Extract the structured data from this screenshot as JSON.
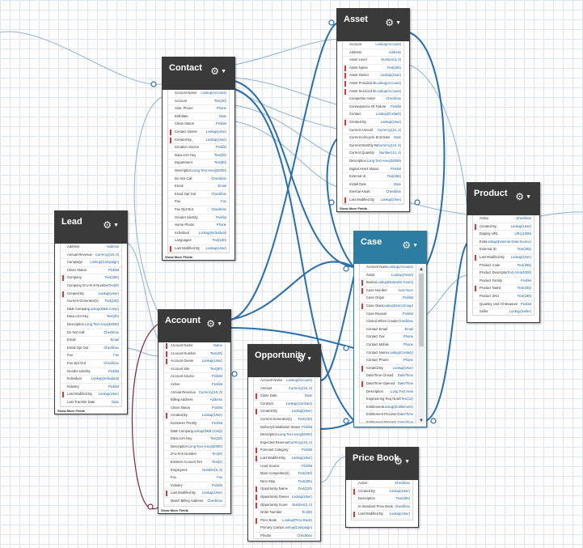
{
  "colors": {
    "header": "#3a3a3a",
    "case_header": "#2d7ca2",
    "link_blue": "#2b6ea8",
    "link_light": "#8fb4cf",
    "link_maroon": "#7a2a40",
    "required": "#d9363e"
  },
  "show_more": "Show More Fields",
  "objects": {
    "contact": {
      "title": "Contact",
      "fields": [
        [
          "Account Name",
          "Lookup(Account)",
          0
        ],
        [
          "Account",
          "Text(40)",
          0
        ],
        [
          "Asst. Phone",
          "Phone",
          0
        ],
        [
          "Birthdate",
          "Date",
          0
        ],
        [
          "Clean Status",
          "Picklist",
          0
        ],
        [
          "Contact Owner",
          "Lookup(User)",
          1
        ],
        [
          "Created By",
          "Lookup(User)",
          1
        ],
        [
          "Creation Source",
          "Picklist",
          0
        ],
        [
          "Data.com Key",
          "Text(20)",
          0
        ],
        [
          "Department",
          "Text(80)",
          0
        ],
        [
          "Description",
          "Long Text Area(32000)",
          0
        ],
        [
          "Do Not Call",
          "Checkbox",
          0
        ],
        [
          "Email",
          "Email",
          0
        ],
        [
          "Email Opt Out",
          "Checkbox",
          0
        ],
        [
          "Fax",
          "Fax",
          0
        ],
        [
          "Fax Opt Out",
          "Checkbox",
          0
        ],
        [
          "Gender Identity",
          "Picklist",
          0
        ],
        [
          "Home Phone",
          "Phone",
          0
        ],
        [
          "Individual",
          "Lookup(Individual)",
          0
        ],
        [
          "Languages",
          "Text(100)",
          0
        ],
        [
          "Last Modified By",
          "Lookup(User)",
          1
        ],
        [
          "Last Stay-in-Touch Request Date",
          "Date/Time",
          0
        ],
        [
          "Last Stay-in-Touch Save Date",
          "Date/Time",
          0
        ]
      ]
    },
    "asset": {
      "title": "Asset",
      "fields": [
        [
          "Account",
          "Lookup(Account)",
          0
        ],
        [
          "Address",
          "Address",
          0
        ],
        [
          "Asset Level",
          "Number(3, 0)",
          0
        ],
        [
          "Asset Name",
          "Text(255)",
          1
        ],
        [
          "Asset Owner",
          "Lookup(User)",
          1
        ],
        [
          "Asset Provided By",
          "Lookup(Account)",
          1
        ],
        [
          "Asset Serviced By",
          "Lookup(Account)",
          1
        ],
        [
          "Competitor Asset",
          "Checkbox",
          0
        ],
        [
          "Consequence Of Failure",
          "Picklist",
          0
        ],
        [
          "Contact",
          "Lookup(Contact)",
          0
        ],
        [
          "Created By",
          "Lookup(User)",
          1
        ],
        [
          "Current Amount",
          "Currency(16, 2)",
          0
        ],
        [
          "Current Lifecycle End Date",
          "Date",
          0
        ],
        [
          "Current Monthly Recurring Revenue",
          "Currency(16, 2)",
          0
        ],
        [
          "Current Quantity",
          "Number(12, 2)",
          0
        ],
        [
          "Description",
          "Long Text Area(32000)",
          0
        ],
        [
          "Digital Asset Status",
          "Picklist",
          0
        ],
        [
          "External Id",
          "Text(255)",
          0
        ],
        [
          "Install Date",
          "Date",
          0
        ],
        [
          "Internal Asset",
          "Checkbox",
          0
        ],
        [
          "Last Modified By",
          "Lookup(User)",
          1
        ],
        [
          "Lifecycle End Date",
          "Date/Time",
          0
        ],
        [
          "Lifecycle-managed asset",
          "Checkbox",
          0
        ]
      ]
    },
    "lead": {
      "title": "Lead",
      "fields": [
        [
          "Address",
          "Address",
          0
        ],
        [
          "Annual Revenue",
          "Currency(18, 0)",
          0
        ],
        [
          "Campaign",
          "Lookup(Campaign)",
          0
        ],
        [
          "Clean Status",
          "Picklist",
          0
        ],
        [
          "Company",
          "Text(255)",
          1
        ],
        [
          "Company D-U-N-S Number",
          "Text(9)",
          0
        ],
        [
          "Created By",
          "Lookup(User)",
          1
        ],
        [
          "Current Generator(s)",
          "Text(100)",
          0
        ],
        [
          "D&B Company",
          "Lookup(D&B Comp)",
          0
        ],
        [
          "Data.com Key",
          "Text(20)",
          0
        ],
        [
          "Description",
          "Long Text Area(32000)",
          0
        ],
        [
          "Do Not Call",
          "Checkbox",
          0
        ],
        [
          "Email",
          "Email",
          0
        ],
        [
          "Email Opt Out",
          "Checkbox",
          0
        ],
        [
          "Fax",
          "Fax",
          0
        ],
        [
          "Fax Opt Out",
          "Checkbox",
          0
        ],
        [
          "Gender Identity",
          "Picklist",
          0
        ],
        [
          "Individual",
          "Lookup(Individual)",
          0
        ],
        [
          "Industry",
          "Picklist",
          0
        ],
        [
          "Last Modified By",
          "Lookup(User)",
          1
        ],
        [
          "Last Transfer Date",
          "Date",
          0
        ],
        [
          "Lead Owner",
          "Lookup(User)",
          1
        ],
        [
          "Lead Source",
          "Picklist",
          0
        ],
        [
          "Lead Status",
          "Picklist",
          0
        ]
      ]
    },
    "case": {
      "title": "Case",
      "fields": [
        [
          "Account Name",
          "Lookup(Account)",
          0
        ],
        [
          "Asset",
          "Lookup(Asset)",
          0
        ],
        [
          "Business Hours",
          "Lookup(Business Hours)",
          1
        ],
        [
          "Case Number",
          "Auto Num",
          1
        ],
        [
          "Case Origin",
          "Picklist",
          0
        ],
        [
          "Case Owner",
          "Lookup(User,Group)",
          1
        ],
        [
          "Case Reason",
          "Picklist",
          0
        ],
        [
          "Closed When Created",
          "Checkbox",
          0
        ],
        [
          "Contact Email",
          "Email",
          0
        ],
        [
          "Contact Fax",
          "Phone",
          0
        ],
        [
          "Contact Mobile",
          "Phone",
          0
        ],
        [
          "Contact Name",
          "Lookup(Contact)",
          0
        ],
        [
          "Contact Phone",
          "Phone",
          0
        ],
        [
          "Created By",
          "Lookup(User)",
          1
        ],
        [
          "Date/Time Closed",
          "Date/Time",
          0
        ],
        [
          "Date/Time Opened",
          "Date/Time",
          1
        ],
        [
          "Description",
          "Long Text Area",
          0
        ],
        [
          "Engineering Req Number",
          "Text(12)",
          0
        ],
        [
          "Entitlement Name",
          "Lookup(Entitlement)",
          0
        ],
        [
          "Entitlement Process End Time",
          "Date/Time",
          0
        ],
        [
          "Entitlement Process Start Time",
          "Date/Time",
          0
        ],
        [
          "Escalated",
          "Checkbox",
          0
        ]
      ]
    },
    "product": {
      "title": "Product",
      "fields": [
        [
          "Active",
          "Checkbox",
          0
        ],
        [
          "Created By",
          "Lookup(User)",
          1
        ],
        [
          "Display URL",
          "URL(1000)",
          0
        ],
        [
          "External Data Source",
          "Lookup(External Data Source)",
          0
        ],
        [
          "External ID",
          "Text(255)",
          0
        ],
        [
          "Last Modified By",
          "Lookup(User)",
          1
        ],
        [
          "Product Code",
          "Text(255)",
          0
        ],
        [
          "Product Description",
          "Text Area(4000)",
          0
        ],
        [
          "Product Family",
          "Picklist",
          0
        ],
        [
          "Product Name",
          "Text(255)",
          1
        ],
        [
          "Product SKU",
          "Text(180)",
          0
        ],
        [
          "Quantity Unit Of Measure",
          "Picklist",
          0
        ],
        [
          "Seller",
          "Lookup(Seller)",
          0
        ],
        [
          "Source Product",
          "Lookup(Product)",
          0
        ]
      ]
    },
    "account": {
      "title": "Account",
      "fields": [
        [
          "Account Name",
          "Name",
          1
        ],
        [
          "Account Number",
          "Text(40)",
          1
        ],
        [
          "Account Owner",
          "Lookup(User)",
          1
        ],
        [
          "Account Site",
          "Text(80)",
          0
        ],
        [
          "Account Source",
          "Picklist",
          0
        ],
        [
          "Active",
          "Picklist",
          0
        ],
        [
          "Annual Revenue",
          "Currency(18, 0)",
          0
        ],
        [
          "Billing Address",
          "Address",
          0
        ],
        [
          "Clean Status",
          "Picklist",
          0
        ],
        [
          "Created By",
          "Lookup(User)",
          1
        ],
        [
          "Customer Priority",
          "Picklist",
          0
        ],
        [
          "D&B Company",
          "Lookup(D&B Comp)",
          0
        ],
        [
          "Data.com Key",
          "Text(20)",
          0
        ],
        [
          "Description",
          "Long Text Area(32000)",
          0
        ],
        [
          "D-U-N-S Number",
          "Text(9)",
          0
        ],
        [
          "Einstein Account Tier",
          "Text(2)",
          0
        ],
        [
          "Employees",
          "Number(8, 0)",
          0
        ],
        [
          "Fax",
          "Fax",
          0
        ],
        [
          "Industry",
          "Picklist",
          0
        ],
        [
          "Last Modified By",
          "Lookup(User)",
          1
        ],
        [
          "Match Billing Address",
          "Checkbox",
          0
        ],
        [
          "NAICS Code",
          "Text(8)",
          0
        ],
        [
          "NAICS Description",
          "Text(120)",
          0
        ],
        [
          "Number of Locations",
          "Number(3, 0)",
          0
        ]
      ]
    },
    "opportunity": {
      "title": "Opportunity",
      "fields": [
        [
          "Account Name",
          "Lookup(Account)",
          0
        ],
        [
          "Amount",
          "Currency(16, 2)",
          0
        ],
        [
          "Close Date",
          "Date",
          1
        ],
        [
          "Contract",
          "Lookup(Contract)",
          0
        ],
        [
          "Created By",
          "Lookup(User)",
          1
        ],
        [
          "Current Generator(s)",
          "Text(100)",
          0
        ],
        [
          "Delivery/Installation Status",
          "Picklist",
          0
        ],
        [
          "Description",
          "Long Text Area(32000)",
          0
        ],
        [
          "Expected Revenue",
          "Currency(16, 2)",
          0
        ],
        [
          "Forecast Category",
          "Picklist",
          1
        ],
        [
          "Last Modified By",
          "Lookup(User)",
          1
        ],
        [
          "Lead Source",
          "Picklist",
          0
        ],
        [
          "Main Competitor(s)",
          "Text(100)",
          0
        ],
        [
          "Next Step",
          "Text(255)",
          0
        ],
        [
          "Opportunity Name",
          "Text(120)",
          1
        ],
        [
          "Opportunity Owner",
          "Lookup(User)",
          1
        ],
        [
          "Opportunity Score",
          "Number(3, 0)",
          1
        ],
        [
          "Order Number",
          "Text(8)",
          0
        ],
        [
          "Price Book",
          "Lookup(Price Book)",
          1
        ],
        [
          "Primary Campaign Source",
          "Lookup(Campaign)",
          0
        ],
        [
          "Private",
          "Checkbox",
          0
        ],
        [
          "Probability (%)",
          "Percent(3, 0)",
          1
        ],
        [
          "Quantity",
          "Number(16, 2)",
          0
        ]
      ]
    },
    "pricebook": {
      "title": "Price Book",
      "fields": [
        [
          "Active",
          "Checkbox",
          0
        ],
        [
          "Created By",
          "Lookup(User)",
          1
        ],
        [
          "Description",
          "Text(255)",
          0
        ],
        [
          "Is Standard Price Book",
          "Checkbox",
          0
        ],
        [
          "Last Modified By",
          "Lookup(User)",
          1
        ],
        [
          "Price Book Name",
          "Text(255)",
          1
        ]
      ]
    }
  }
}
